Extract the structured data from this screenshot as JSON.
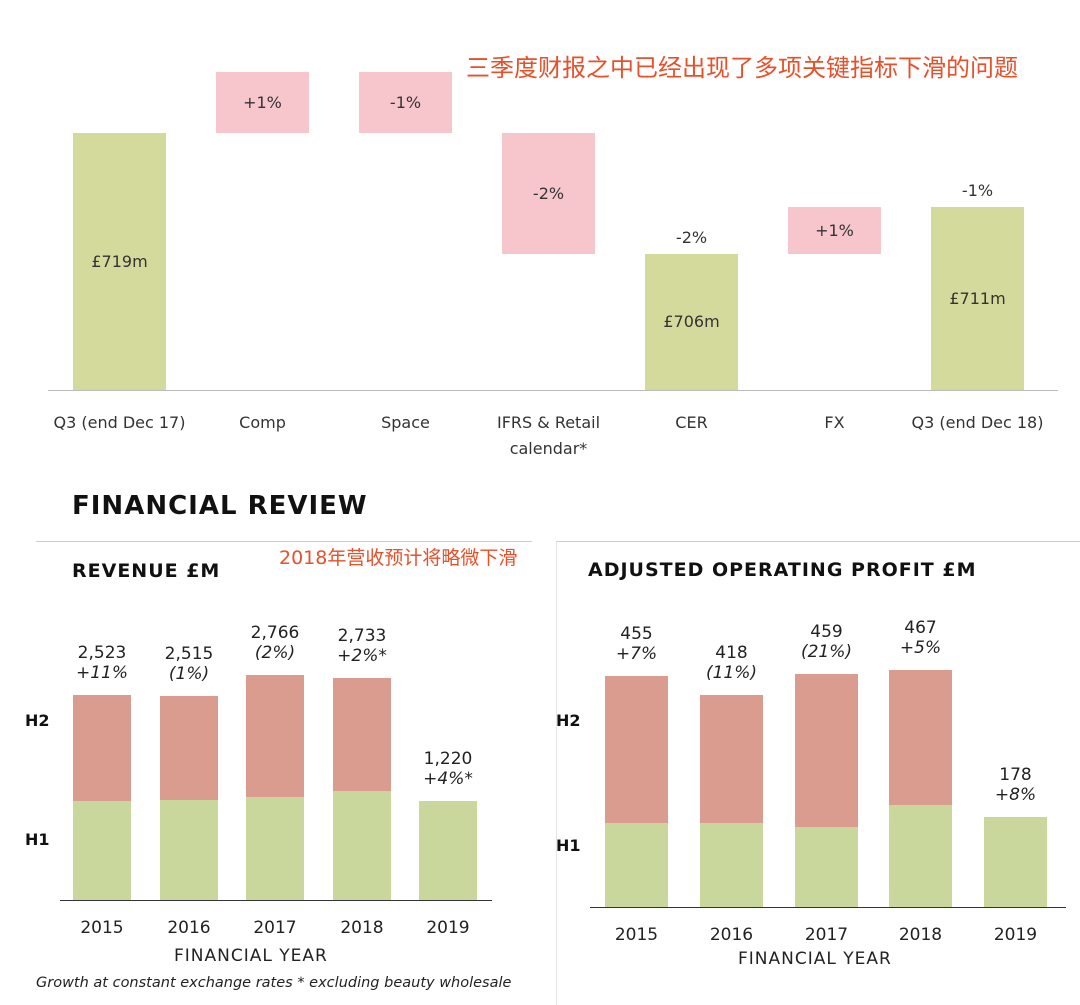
{
  "annotation_top": "三季度财报之中已经出现了多项关键指标下滑的问题",
  "annotation_revenue": "2018年营收预计将略微下滑",
  "chart_data": [
    {
      "type": "waterfall",
      "title": "",
      "steps": [
        {
          "category": "Q3 (end Dec 17)",
          "kind": "total",
          "value": 719,
          "label": "£719m"
        },
        {
          "category": "Comp",
          "kind": "increase",
          "label": "+1%"
        },
        {
          "category": "Space",
          "kind": "decrease",
          "label": "-1%"
        },
        {
          "category": "IFRS & Retail calendar*",
          "kind": "decrease",
          "label": "-2%"
        },
        {
          "category": "CER",
          "kind": "total",
          "value": 706,
          "label": "£706m",
          "change_label": "-2%"
        },
        {
          "category": "FX",
          "kind": "increase",
          "label": "+1%"
        },
        {
          "category": "Q3 (end Dec 18)",
          "kind": "total",
          "value": 711,
          "label": "£711m",
          "change_label": "-1%"
        }
      ],
      "colors": {
        "total": "#d4da9c",
        "change": "#f7c6cc"
      }
    },
    {
      "type": "stacked_bar",
      "title": "REVENUE £M",
      "categories": [
        "2015",
        "2016",
        "2017",
        "2018",
        "2019"
      ],
      "series": [
        {
          "name": "H1",
          "values": [
            1220,
            1225,
            1270,
            1340,
            1220
          ]
        },
        {
          "name": "H2",
          "values": [
            1303,
            1290,
            1496,
            1393,
            0
          ]
        }
      ],
      "totals": [
        "2,523",
        "2,515",
        "2,766",
        "2,733",
        "1,220"
      ],
      "growth": [
        "+11%",
        "(1%)",
        "(2%)",
        "+2%*",
        "+4%*"
      ],
      "xlabel": "FINANCIAL YEAR",
      "ylim": [
        0,
        2900
      ],
      "stack_labels": [
        "H2",
        "H1"
      ],
      "colors": {
        "H1": "#c9d69c",
        "H2": "#d99c8f"
      }
    },
    {
      "type": "stacked_bar",
      "title": "ADJUSTED OPERATING PROFIT £M",
      "categories": [
        "2015",
        "2016",
        "2017",
        "2018",
        "2019"
      ],
      "series": [
        {
          "name": "H1",
          "values": [
            165,
            165,
            158,
            200,
            178
          ]
        },
        {
          "name": "H2",
          "values": [
            290,
            253,
            301,
            267,
            0
          ]
        }
      ],
      "totals": [
        "455",
        "418",
        "459",
        "467",
        "178"
      ],
      "growth": [
        "+7%",
        "(11%)",
        "(21%)",
        "+5%",
        "+8%"
      ],
      "xlabel": "FINANCIAL YEAR",
      "ylim": [
        0,
        500
      ],
      "stack_labels": [
        "H2",
        "H1"
      ],
      "colors": {
        "H1": "#c9d69c",
        "H2": "#d99c8f"
      }
    }
  ],
  "section_title": "FINANCIAL REVIEW",
  "footnote": "Growth at constant exchange rates * excluding beauty wholesale"
}
